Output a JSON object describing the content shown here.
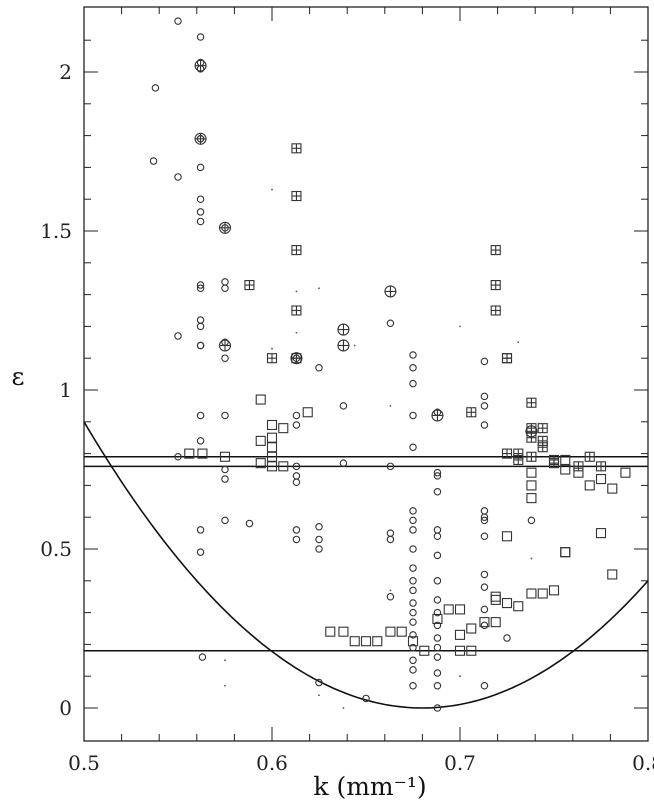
{
  "chart_data": {
    "type": "scatter",
    "title": "",
    "xlabel": "k (mm⁻¹)",
    "ylabel": "ε",
    "xlim": [
      0.5,
      0.8
    ],
    "ylim": [
      -0.1,
      2.2
    ],
    "x_ticks": [
      0.5,
      0.6,
      0.7,
      0.8
    ],
    "x_tick_labels": [
      "0.5",
      "0.6",
      "0.7",
      "0.8"
    ],
    "y_ticks": [
      0,
      0.5,
      1,
      1.5,
      2
    ],
    "y_tick_labels": [
      "0",
      "0.5",
      "1",
      "1.5",
      "2"
    ],
    "grid": false,
    "legend": "none",
    "hlines": [
      0.79,
      0.76,
      0.18
    ],
    "curve": {
      "form": "parabola",
      "vertex_x": 0.68,
      "vertex_y": 0.0,
      "x": [
        0.5,
        0.8
      ],
      "y": [
        0.9,
        0.35
      ]
    },
    "series": [
      {
        "marker": "circle",
        "points": [
          [
            0.55,
            2.16
          ],
          [
            0.562,
            2.11
          ],
          [
            0.562,
            2.03
          ],
          [
            0.562,
            2.01
          ],
          [
            0.538,
            1.95
          ],
          [
            0.562,
            1.79
          ],
          [
            0.562,
            1.79
          ],
          [
            0.537,
            1.72
          ],
          [
            0.562,
            1.7
          ],
          [
            0.55,
            1.67
          ],
          [
            0.562,
            1.6
          ],
          [
            0.562,
            1.56
          ],
          [
            0.562,
            1.53
          ],
          [
            0.575,
            1.51
          ],
          [
            0.575,
            1.34
          ],
          [
            0.575,
            1.32
          ],
          [
            0.562,
            1.33
          ],
          [
            0.562,
            1.32
          ],
          [
            0.562,
            1.22
          ],
          [
            0.562,
            1.2
          ],
          [
            0.55,
            1.17
          ],
          [
            0.562,
            1.14
          ],
          [
            0.562,
            1.14
          ],
          [
            0.575,
            1.15
          ],
          [
            0.575,
            1.1
          ],
          [
            0.613,
            1.1
          ],
          [
            0.663,
            1.21
          ],
          [
            0.625,
            1.07
          ],
          [
            0.638,
            0.95
          ],
          [
            0.613,
            0.92
          ],
          [
            0.613,
            0.89
          ],
          [
            0.575,
            0.92
          ],
          [
            0.562,
            0.92
          ],
          [
            0.562,
            0.84
          ],
          [
            0.55,
            0.79
          ],
          [
            0.575,
            0.75
          ],
          [
            0.575,
            0.72
          ],
          [
            0.613,
            0.76
          ],
          [
            0.613,
            0.73
          ],
          [
            0.613,
            0.71
          ],
          [
            0.638,
            0.77
          ],
          [
            0.663,
            0.76
          ],
          [
            0.675,
            1.11
          ],
          [
            0.675,
            1.07
          ],
          [
            0.675,
            1.02
          ],
          [
            0.675,
            0.92
          ],
          [
            0.675,
            0.82
          ],
          [
            0.688,
            0.93
          ],
          [
            0.688,
            0.74
          ],
          [
            0.688,
            0.73
          ],
          [
            0.688,
            0.68
          ],
          [
            0.575,
            0.59
          ],
          [
            0.588,
            0.58
          ],
          [
            0.562,
            0.56
          ],
          [
            0.562,
            0.49
          ],
          [
            0.613,
            0.56
          ],
          [
            0.613,
            0.53
          ],
          [
            0.625,
            0.57
          ],
          [
            0.625,
            0.53
          ],
          [
            0.625,
            0.5
          ],
          [
            0.663,
            0.55
          ],
          [
            0.663,
            0.53
          ],
          [
            0.663,
            0.35
          ],
          [
            0.675,
            0.62
          ],
          [
            0.675,
            0.59
          ],
          [
            0.675,
            0.56
          ],
          [
            0.675,
            0.5
          ],
          [
            0.675,
            0.44
          ],
          [
            0.675,
            0.4
          ],
          [
            0.675,
            0.37
          ],
          [
            0.675,
            0.33
          ],
          [
            0.675,
            0.3
          ],
          [
            0.675,
            0.27
          ],
          [
            0.675,
            0.23
          ],
          [
            0.675,
            0.19
          ],
          [
            0.675,
            0.15
          ],
          [
            0.675,
            0.12
          ],
          [
            0.675,
            0.07
          ],
          [
            0.688,
            0.56
          ],
          [
            0.688,
            0.54
          ],
          [
            0.688,
            0.48
          ],
          [
            0.688,
            0.4
          ],
          [
            0.688,
            0.34
          ],
          [
            0.688,
            0.3
          ],
          [
            0.688,
            0.26
          ],
          [
            0.688,
            0.22
          ],
          [
            0.688,
            0.19
          ],
          [
            0.688,
            0.16
          ],
          [
            0.688,
            0.11
          ],
          [
            0.688,
            0.07
          ],
          [
            0.688,
            0.0
          ],
          [
            0.713,
            1.09
          ],
          [
            0.713,
            0.98
          ],
          [
            0.713,
            0.95
          ],
          [
            0.713,
            0.89
          ],
          [
            0.713,
            0.62
          ],
          [
            0.713,
            0.6
          ],
          [
            0.713,
            0.59
          ],
          [
            0.713,
            0.54
          ],
          [
            0.713,
            0.42
          ],
          [
            0.713,
            0.38
          ],
          [
            0.713,
            0.31
          ],
          [
            0.713,
            0.26
          ],
          [
            0.713,
            0.07
          ],
          [
            0.738,
            0.59
          ],
          [
            0.725,
            0.22
          ],
          [
            0.65,
            0.03
          ],
          [
            0.625,
            0.08
          ],
          [
            0.563,
            0.16
          ]
        ]
      },
      {
        "marker": "circle-plus",
        "points": [
          [
            0.562,
            2.02
          ],
          [
            0.562,
            1.79
          ],
          [
            0.575,
            1.51
          ],
          [
            0.575,
            1.14
          ],
          [
            0.613,
            1.1
          ],
          [
            0.638,
            1.19
          ],
          [
            0.638,
            1.14
          ],
          [
            0.663,
            1.31
          ],
          [
            0.688,
            0.92
          ],
          [
            0.738,
            0.87
          ]
        ]
      },
      {
        "marker": "square-plus",
        "points": [
          [
            0.613,
            1.76
          ],
          [
            0.613,
            1.61
          ],
          [
            0.588,
            1.33
          ],
          [
            0.613,
            1.44
          ],
          [
            0.613,
            1.25
          ],
          [
            0.6,
            1.1
          ],
          [
            0.613,
            1.1
          ],
          [
            0.719,
            1.44
          ],
          [
            0.719,
            1.33
          ],
          [
            0.719,
            1.25
          ],
          [
            0.725,
            1.1
          ],
          [
            0.725,
            1.1
          ],
          [
            0.706,
            0.93
          ],
          [
            0.738,
            0.96
          ],
          [
            0.738,
            0.88
          ],
          [
            0.738,
            0.85
          ],
          [
            0.744,
            0.88
          ],
          [
            0.744,
            0.84
          ],
          [
            0.744,
            0.82
          ],
          [
            0.731,
            0.8
          ],
          [
            0.738,
            0.79
          ],
          [
            0.731,
            0.78
          ],
          [
            0.75,
            0.78
          ],
          [
            0.75,
            0.77
          ],
          [
            0.763,
            0.76
          ],
          [
            0.769,
            0.79
          ],
          [
            0.775,
            0.76
          ],
          [
            0.725,
            0.8
          ]
        ]
      },
      {
        "marker": "square",
        "points": [
          [
            0.594,
            0.97
          ],
          [
            0.6,
            0.89
          ],
          [
            0.6,
            0.85
          ],
          [
            0.594,
            0.84
          ],
          [
            0.6,
            0.82
          ],
          [
            0.606,
            0.88
          ],
          [
            0.6,
            0.79
          ],
          [
            0.606,
            0.76
          ],
          [
            0.594,
            0.77
          ],
          [
            0.6,
            0.76
          ],
          [
            0.619,
            0.93
          ],
          [
            0.556,
            0.8
          ],
          [
            0.563,
            0.8
          ],
          [
            0.575,
            0.79
          ],
          [
            0.738,
            0.74
          ],
          [
            0.738,
            0.7
          ],
          [
            0.738,
            0.66
          ],
          [
            0.756,
            0.75
          ],
          [
            0.756,
            0.78
          ],
          [
            0.763,
            0.74
          ],
          [
            0.769,
            0.7
          ],
          [
            0.775,
            0.72
          ],
          [
            0.775,
            0.55
          ],
          [
            0.781,
            0.69
          ],
          [
            0.781,
            0.42
          ],
          [
            0.744,
            0.36
          ],
          [
            0.738,
            0.36
          ],
          [
            0.725,
            0.54
          ],
          [
            0.719,
            0.35
          ],
          [
            0.719,
            0.34
          ],
          [
            0.725,
            0.33
          ],
          [
            0.731,
            0.32
          ],
          [
            0.75,
            0.37
          ],
          [
            0.756,
            0.49
          ],
          [
            0.694,
            0.31
          ],
          [
            0.7,
            0.23
          ],
          [
            0.7,
            0.31
          ],
          [
            0.706,
            0.25
          ],
          [
            0.706,
            0.18
          ],
          [
            0.713,
            0.27
          ],
          [
            0.719,
            0.27
          ],
          [
            0.631,
            0.24
          ],
          [
            0.638,
            0.24
          ],
          [
            0.644,
            0.21
          ],
          [
            0.65,
            0.21
          ],
          [
            0.656,
            0.21
          ],
          [
            0.663,
            0.24
          ],
          [
            0.669,
            0.24
          ],
          [
            0.675,
            0.21
          ],
          [
            0.681,
            0.18
          ],
          [
            0.688,
            0.28
          ],
          [
            0.7,
            0.18
          ],
          [
            0.756,
            0.49
          ],
          [
            0.788,
            0.74
          ]
        ]
      },
      {
        "marker": "dot",
        "points": [
          [
            0.575,
            0.15
          ],
          [
            0.575,
            0.07
          ],
          [
            0.6,
            1.63
          ],
          [
            0.613,
            1.18
          ],
          [
            0.625,
            1.32
          ],
          [
            0.6,
            1.13
          ],
          [
            0.644,
            1.14
          ],
          [
            0.7,
            1.2
          ],
          [
            0.731,
            1.15
          ],
          [
            0.663,
            0.37
          ],
          [
            0.7,
            0.1
          ],
          [
            0.625,
            0.04
          ],
          [
            0.638,
            0.0
          ],
          [
            0.613,
            1.31
          ],
          [
            0.663,
            0.95
          ],
          [
            0.738,
            0.47
          ]
        ]
      }
    ]
  }
}
